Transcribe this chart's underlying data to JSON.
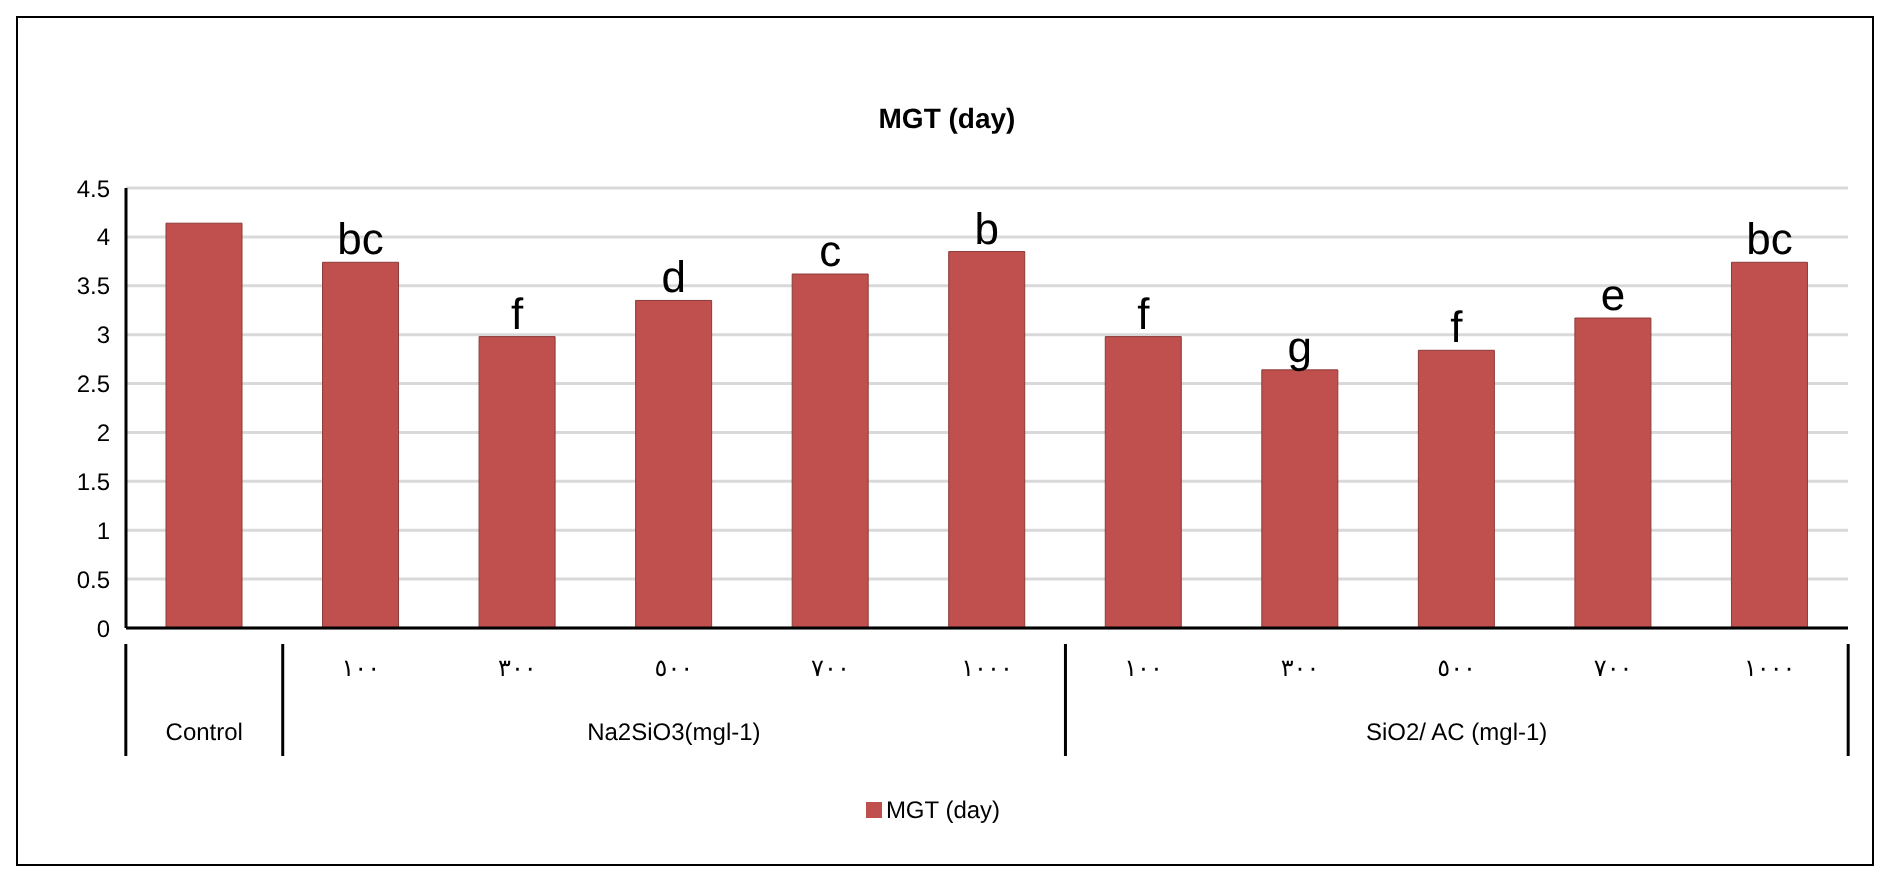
{
  "chart_data": {
    "type": "bar",
    "title": "MGT (day)",
    "categories": [
      null,
      "١٠٠",
      "٣٠٠",
      "٥٠٠",
      "٧٠٠",
      "١٠٠٠",
      "١٠٠",
      "٣٠٠",
      "٥٠٠",
      "٧٠٠",
      "١٠٠٠"
    ],
    "annotations": [
      "Control",
      "Na2SiO3(mgl-1)",
      "SiO2/ AC (mgl-1)"
    ],
    "series": [
      {
        "name": "MGT (day)",
        "color": "#c0504d",
        "values": [
          4.14,
          3.74,
          2.98,
          3.35,
          3.62,
          3.85,
          2.98,
          2.64,
          2.84,
          3.17,
          3.74
        ],
        "value_labels": [
          null,
          "bc",
          "f",
          "d",
          "c",
          "b",
          "f",
          "g",
          "f",
          "e",
          "bc"
        ]
      }
    ],
    "ylim": [
      0,
      4.5
    ],
    "yticks": [
      0,
      0.5,
      1,
      1.5,
      2,
      2.5,
      3,
      3.5,
      4,
      4.5
    ],
    "grid": "y",
    "legend": "bottom"
  }
}
